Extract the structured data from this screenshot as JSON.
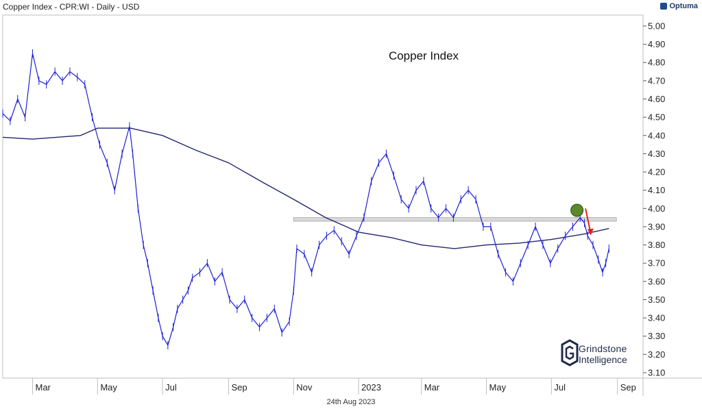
{
  "header": {
    "title": "Copper Index - CPR:WI - Daily - USD",
    "brand": "Optuma"
  },
  "footer": {
    "date": "24th Aug 2023"
  },
  "watermark": {
    "line1": "Grindstone",
    "line2": "Intelligence"
  },
  "colors": {
    "price": "#1a1fd6",
    "ma": "#1e2470",
    "zone": "#d9d9d9",
    "marker": "#5a8a2a",
    "arrow": "#e0241a"
  },
  "chart_data": {
    "type": "line",
    "title": "Copper Index",
    "xlabel": "",
    "ylabel": "",
    "ylim": [
      3.07,
      5.06
    ],
    "y_ticks": [
      "5.00",
      "4.90",
      "4.80",
      "4.70",
      "4.60",
      "4.50",
      "4.40",
      "4.30",
      "4.20",
      "4.10",
      "4.00",
      "3.90",
      "3.80",
      "3.70",
      "3.60",
      "3.50",
      "3.40",
      "3.30",
      "3.20",
      "3.10"
    ],
    "x_range": [
      "2022-02-01",
      "2023-09-25"
    ],
    "x_ticks": [
      {
        "date": "2022-03-01",
        "label": "Mar"
      },
      {
        "date": "2022-05-01",
        "label": "May"
      },
      {
        "date": "2022-07-01",
        "label": "Jul"
      },
      {
        "date": "2022-09-01",
        "label": "Sep"
      },
      {
        "date": "2022-11-01",
        "label": "Nov"
      },
      {
        "date": "2023-01-01",
        "label": "2023"
      },
      {
        "date": "2023-03-01",
        "label": "Mar"
      },
      {
        "date": "2023-05-01",
        "label": "May"
      },
      {
        "date": "2023-07-01",
        "label": "Jul"
      },
      {
        "date": "2023-09-01",
        "label": "Sep"
      }
    ],
    "price_series": {
      "x": [
        "2022-02-01",
        "2022-02-08",
        "2022-02-15",
        "2022-02-22",
        "2022-03-01",
        "2022-03-07",
        "2022-03-14",
        "2022-03-22",
        "2022-03-29",
        "2022-04-05",
        "2022-04-12",
        "2022-04-19",
        "2022-04-26",
        "2022-05-03",
        "2022-05-10",
        "2022-05-17",
        "2022-05-24",
        "2022-05-31",
        "2022-06-03",
        "2022-06-08",
        "2022-06-13",
        "2022-06-17",
        "2022-06-22",
        "2022-06-27",
        "2022-07-01",
        "2022-07-06",
        "2022-07-11",
        "2022-07-15",
        "2022-07-20",
        "2022-07-25",
        "2022-07-29",
        "2022-08-05",
        "2022-08-12",
        "2022-08-19",
        "2022-08-26",
        "2022-09-02",
        "2022-09-09",
        "2022-09-16",
        "2022-09-23",
        "2022-09-30",
        "2022-10-07",
        "2022-10-14",
        "2022-10-21",
        "2022-10-28",
        "2022-11-01",
        "2022-11-04",
        "2022-11-11",
        "2022-11-18",
        "2022-11-25",
        "2022-12-02",
        "2022-12-09",
        "2022-12-16",
        "2022-12-23",
        "2022-12-30",
        "2023-01-06",
        "2023-01-13",
        "2023-01-20",
        "2023-01-27",
        "2023-02-03",
        "2023-02-10",
        "2023-02-17",
        "2023-02-24",
        "2023-03-03",
        "2023-03-10",
        "2023-03-17",
        "2023-03-24",
        "2023-03-31",
        "2023-04-07",
        "2023-04-14",
        "2023-04-21",
        "2023-04-28",
        "2023-05-05",
        "2023-05-12",
        "2023-05-19",
        "2023-05-26",
        "2023-06-02",
        "2023-06-09",
        "2023-06-16",
        "2023-06-23",
        "2023-06-30",
        "2023-07-07",
        "2023-07-14",
        "2023-07-21",
        "2023-07-28",
        "2023-08-01",
        "2023-08-04",
        "2023-08-09",
        "2023-08-14",
        "2023-08-18",
        "2023-08-21",
        "2023-08-24"
      ],
      "y": [
        4.52,
        4.48,
        4.6,
        4.5,
        4.85,
        4.7,
        4.68,
        4.75,
        4.7,
        4.75,
        4.72,
        4.68,
        4.5,
        4.35,
        4.25,
        4.1,
        4.3,
        4.45,
        4.3,
        4.0,
        3.8,
        3.7,
        3.55,
        3.4,
        3.3,
        3.25,
        3.35,
        3.45,
        3.5,
        3.55,
        3.62,
        3.65,
        3.7,
        3.6,
        3.65,
        3.5,
        3.45,
        3.5,
        3.4,
        3.35,
        3.4,
        3.45,
        3.32,
        3.38,
        3.55,
        3.78,
        3.75,
        3.65,
        3.8,
        3.85,
        3.88,
        3.82,
        3.75,
        3.85,
        3.95,
        4.15,
        4.25,
        4.3,
        4.18,
        4.05,
        4.0,
        4.1,
        4.15,
        4.0,
        3.95,
        4.0,
        3.95,
        4.05,
        4.1,
        4.05,
        3.9,
        3.9,
        3.75,
        3.65,
        3.6,
        3.7,
        3.8,
        3.9,
        3.8,
        3.7,
        3.78,
        3.85,
        3.9,
        3.95,
        3.92,
        3.85,
        3.8,
        3.72,
        3.65,
        3.7,
        3.78
      ]
    },
    "ma_series": {
      "x": [
        "2022-02-01",
        "2022-03-01",
        "2022-04-15",
        "2022-05-01",
        "2022-06-01",
        "2022-07-01",
        "2022-08-01",
        "2022-09-01",
        "2022-10-01",
        "2022-11-01",
        "2022-12-01",
        "2023-01-01",
        "2023-02-01",
        "2023-03-01",
        "2023-04-01",
        "2023-05-01",
        "2023-06-01",
        "2023-07-01",
        "2023-08-01",
        "2023-08-24"
      ],
      "y": [
        4.39,
        4.38,
        4.4,
        4.44,
        4.44,
        4.4,
        4.32,
        4.25,
        4.15,
        4.05,
        3.95,
        3.87,
        3.84,
        3.8,
        3.78,
        3.8,
        3.81,
        3.83,
        3.86,
        3.89
      ]
    },
    "resistance_zone": {
      "from": "2022-11-01",
      "to": "2023-08-31",
      "y_low": 3.93,
      "y_high": 3.95
    },
    "marker": {
      "date": "2023-07-25",
      "y": 3.99
    },
    "arrow": {
      "from_date": "2023-08-02",
      "from_y": 4.0,
      "to_date": "2023-08-07",
      "to_y": 3.86
    }
  }
}
